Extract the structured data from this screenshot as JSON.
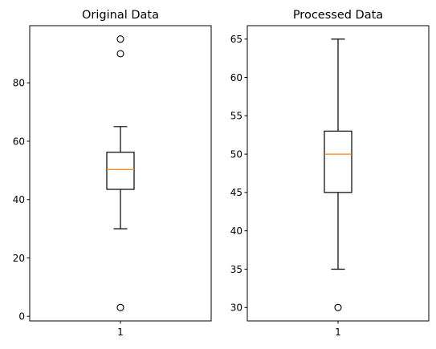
{
  "chart_data": [
    {
      "type": "boxplot",
      "title": "Original Data",
      "categories": [
        "1"
      ],
      "ylim": [
        -1.6,
        99.6
      ],
      "yticks": [
        0,
        20,
        40,
        60,
        80
      ],
      "box": {
        "whisker_low": 30,
        "q1": 43.5,
        "median": 50.3,
        "q3": 56.2,
        "whisker_high": 65,
        "fliers": [
          95,
          90,
          3
        ]
      },
      "grid": false,
      "colors": {
        "box": "#000000",
        "median": "#ff7f0e"
      }
    },
    {
      "type": "boxplot",
      "title": "Processed Data",
      "categories": [
        "1"
      ],
      "ylim": [
        28.25,
        66.75
      ],
      "yticks": [
        30,
        35,
        40,
        45,
        50,
        55,
        60,
        65
      ],
      "box": {
        "whisker_low": 35,
        "q1": 45,
        "median": 50,
        "q3": 53,
        "whisker_high": 65,
        "fliers": [
          30
        ]
      },
      "grid": false,
      "colors": {
        "box": "#000000",
        "median": "#ff7f0e"
      }
    }
  ]
}
